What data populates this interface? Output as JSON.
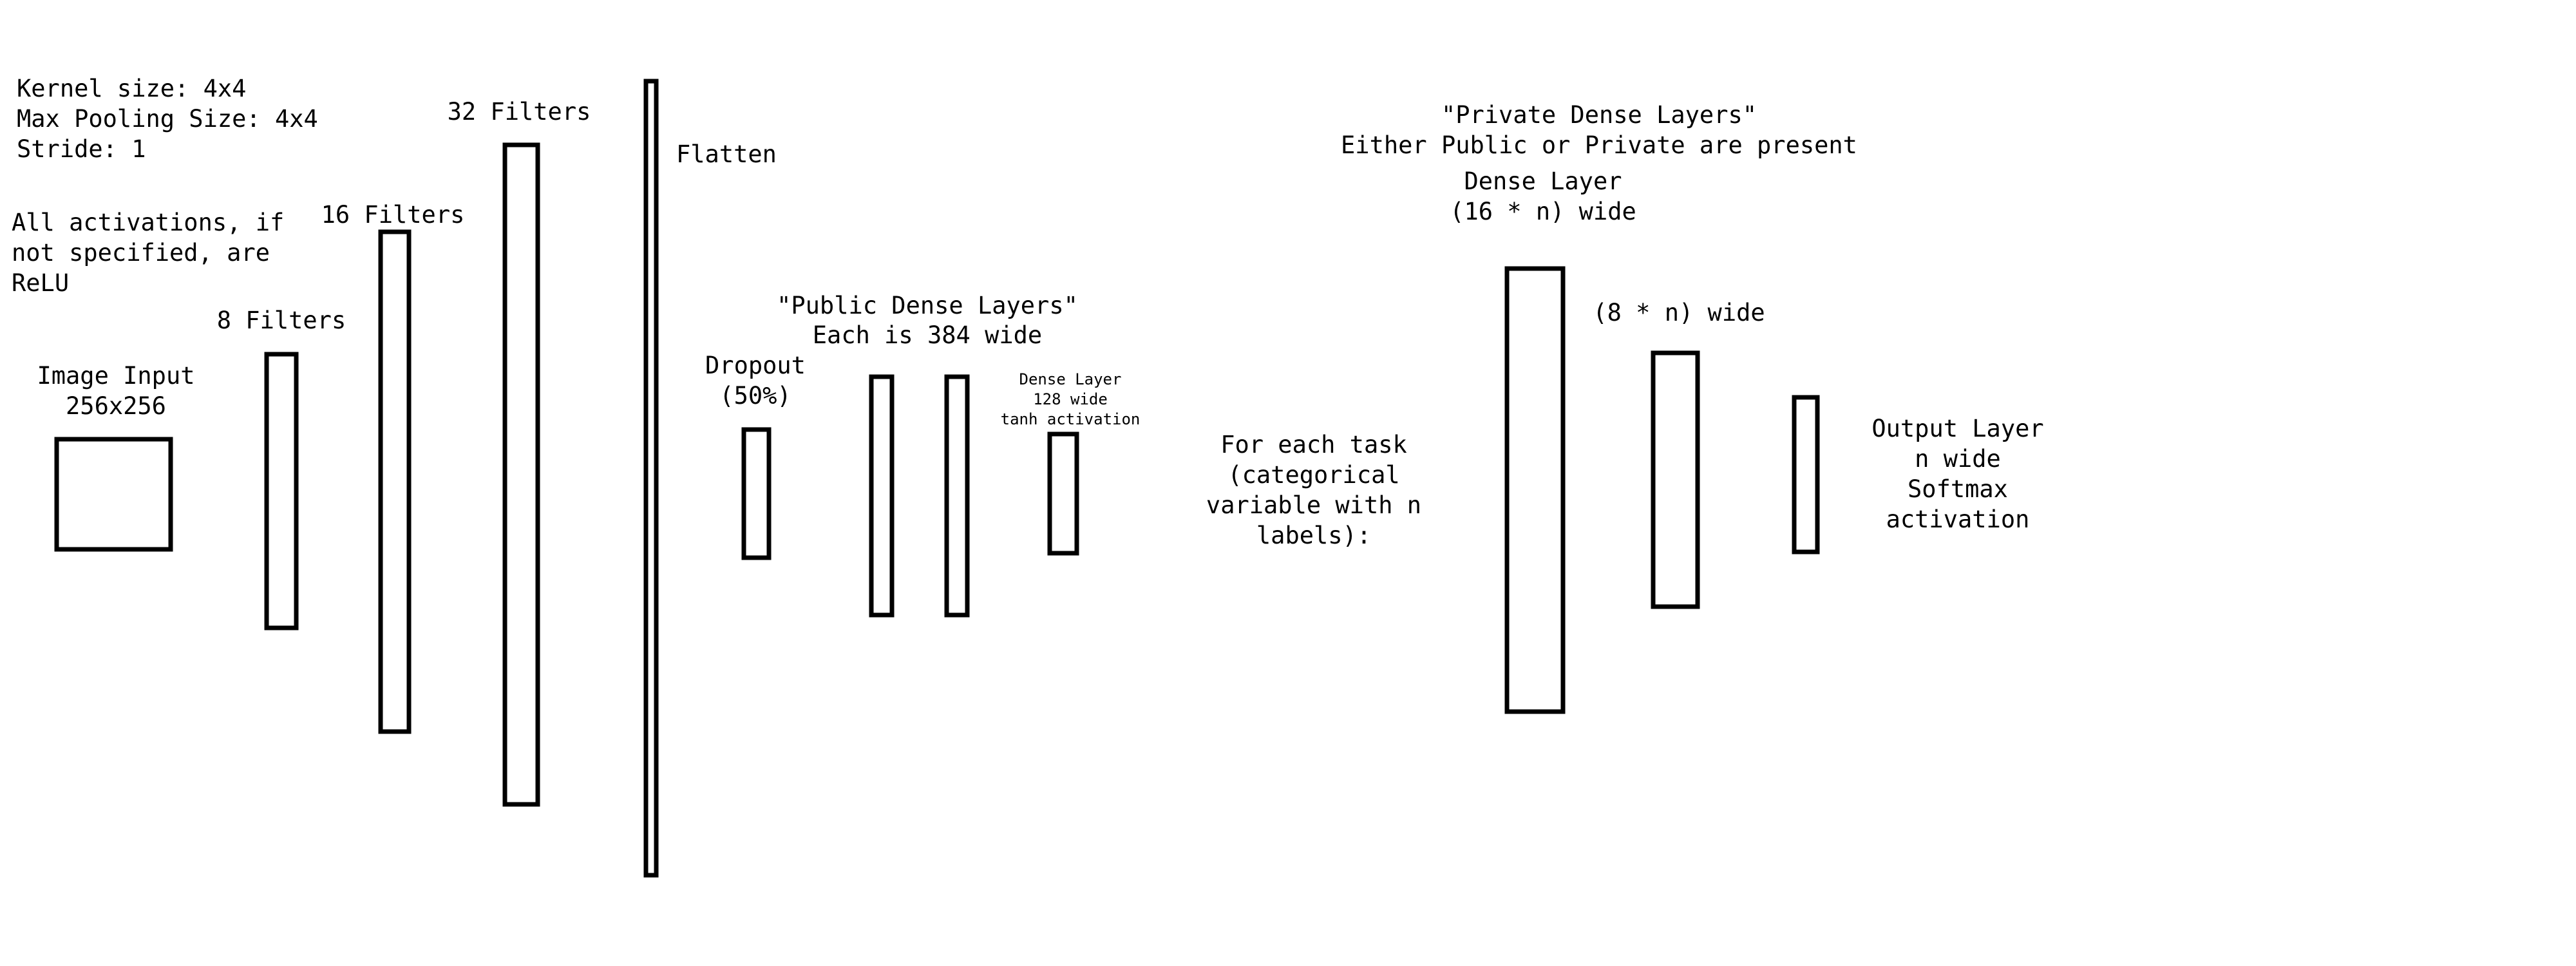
{
  "notes": {
    "kernel": "Kernel size: 4x4",
    "pooling": "Max Pooling Size: 4x4",
    "stride": "Stride: 1",
    "activations_line1": "All activations, if",
    "activations_line2": "not specified, are",
    "activations_line3": "ReLU"
  },
  "image_input": {
    "line1": "Image Input",
    "line2": "256x256"
  },
  "conv_layers": [
    {
      "label": "8 Filters"
    },
    {
      "label": "16 Filters"
    },
    {
      "label": "32 Filters"
    }
  ],
  "flatten": {
    "label": "Flatten"
  },
  "dropout": {
    "line1": "Dropout",
    "line2": "(50%)"
  },
  "public_dense": {
    "title": "\"Public Dense Layers\"",
    "subtitle": "Each is 384 wide"
  },
  "tanh_dense": {
    "line1": "Dense Layer",
    "line2": "128 wide",
    "line3": "tanh activation"
  },
  "task": {
    "line1": "For each task",
    "line2": "(categorical",
    "line3": "variable with n",
    "line4": "labels):"
  },
  "private_dense": {
    "title": "\"Private Dense Layers\"",
    "subtitle": "Either Public or Private are present",
    "layer1_line1": "Dense Layer",
    "layer1_line2": "(16 * n) wide",
    "layer2": "(8 * n) wide"
  },
  "output": {
    "line1": "Output Layer",
    "line2": "n wide",
    "line3": "Softmax",
    "line4": "activation"
  }
}
